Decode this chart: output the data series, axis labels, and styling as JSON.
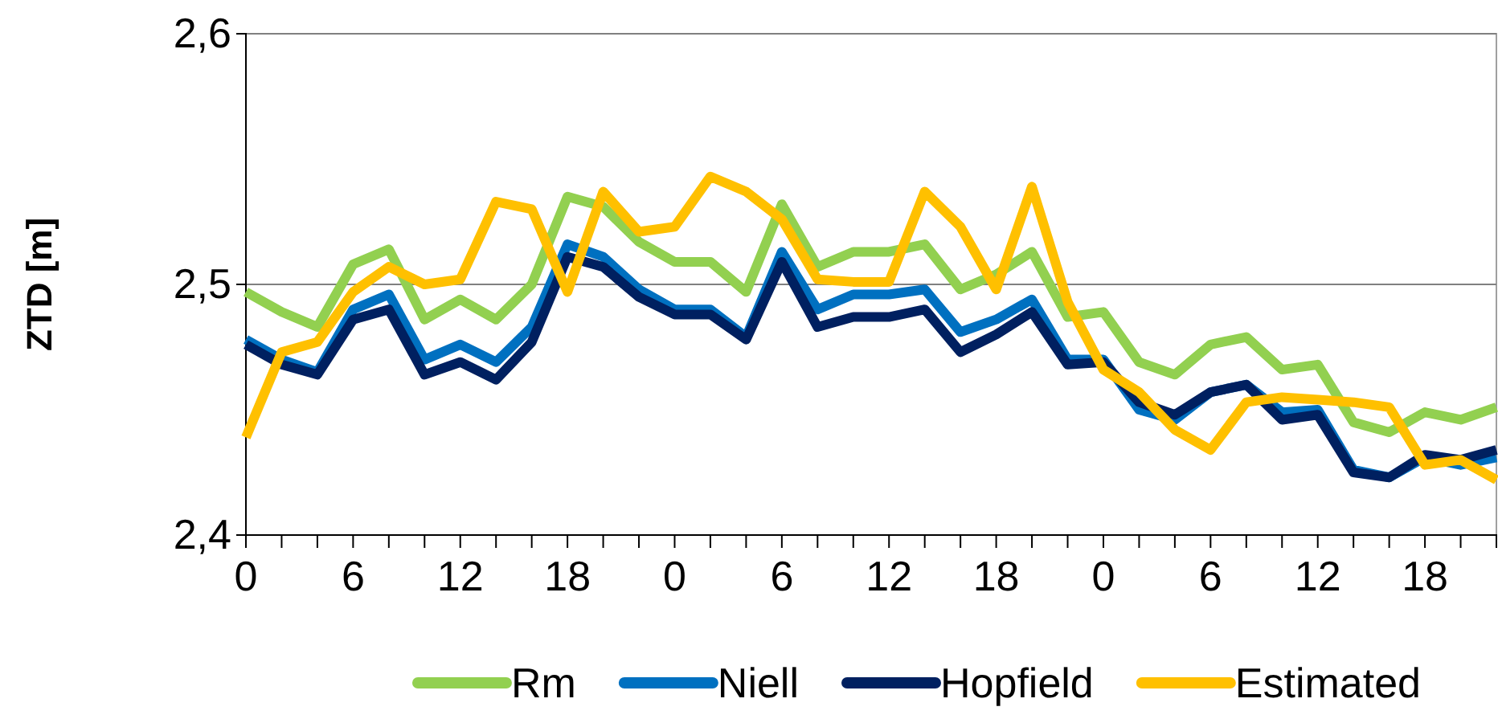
{
  "chart_data": {
    "type": "line",
    "ylabel": "ZTD [m]",
    "categories": [
      "0",
      null,
      null,
      "6",
      null,
      null,
      "12",
      null,
      null,
      "18",
      null,
      null,
      "0",
      null,
      null,
      "6",
      null,
      null,
      "12",
      null,
      null,
      "18",
      null,
      null,
      "0",
      null,
      null,
      "6",
      null,
      null,
      "12",
      null,
      null,
      "18",
      null,
      null
    ],
    "series": [
      {
        "name": "Rm",
        "color": "#92d050",
        "values": [
          2.497,
          2.489,
          2.483,
          2.508,
          2.514,
          2.486,
          2.494,
          2.486,
          2.5,
          2.535,
          2.531,
          2.517,
          2.509,
          2.509,
          2.497,
          2.532,
          2.507,
          2.513,
          2.513,
          2.516,
          2.498,
          2.504,
          2.513,
          2.487,
          2.489,
          2.469,
          2.464,
          2.476,
          2.479,
          2.466,
          2.468,
          2.445,
          2.441,
          2.449,
          2.446,
          2.451
        ]
      },
      {
        "name": "Niell",
        "color": "#0070c0",
        "values": [
          2.478,
          2.47,
          2.465,
          2.49,
          2.496,
          2.47,
          2.476,
          2.469,
          2.483,
          2.516,
          2.511,
          2.498,
          2.49,
          2.49,
          2.479,
          2.513,
          2.49,
          2.496,
          2.496,
          2.498,
          2.481,
          2.486,
          2.494,
          2.47,
          2.47,
          2.45,
          2.446,
          2.457,
          2.46,
          2.449,
          2.45,
          2.426,
          2.423,
          2.431,
          2.428,
          2.431
        ]
      },
      {
        "name": "Hopfield",
        "color": "#002060",
        "values": [
          2.476,
          2.468,
          2.464,
          2.486,
          2.49,
          2.464,
          2.469,
          2.462,
          2.477,
          2.511,
          2.507,
          2.495,
          2.488,
          2.488,
          2.478,
          2.509,
          2.483,
          2.487,
          2.487,
          2.49,
          2.473,
          2.48,
          2.489,
          2.468,
          2.469,
          2.453,
          2.448,
          2.457,
          2.46,
          2.446,
          2.448,
          2.425,
          2.423,
          2.432,
          2.43,
          2.434
        ]
      },
      {
        "name": "Estimated",
        "color": "#ffc000",
        "values": [
          2.439,
          2.473,
          2.477,
          2.497,
          2.507,
          2.5,
          2.502,
          2.533,
          2.53,
          2.497,
          2.537,
          2.521,
          2.523,
          2.543,
          2.537,
          2.526,
          2.502,
          2.501,
          2.501,
          2.537,
          2.523,
          2.498,
          2.539,
          2.493,
          2.466,
          2.457,
          2.442,
          2.434,
          2.453,
          2.455,
          2.454,
          2.453,
          2.451,
          2.428,
          2.43,
          2.422
        ]
      }
    ],
    "ylim": [
      2.4,
      2.6
    ],
    "yticks": [
      {
        "value": 2.4,
        "label": "2,4"
      },
      {
        "value": 2.5,
        "label": "2,5"
      },
      {
        "value": 2.6,
        "label": "2,6"
      }
    ],
    "grid": "y",
    "legend": "bottom",
    "marker": "none",
    "line_style": "solid"
  }
}
